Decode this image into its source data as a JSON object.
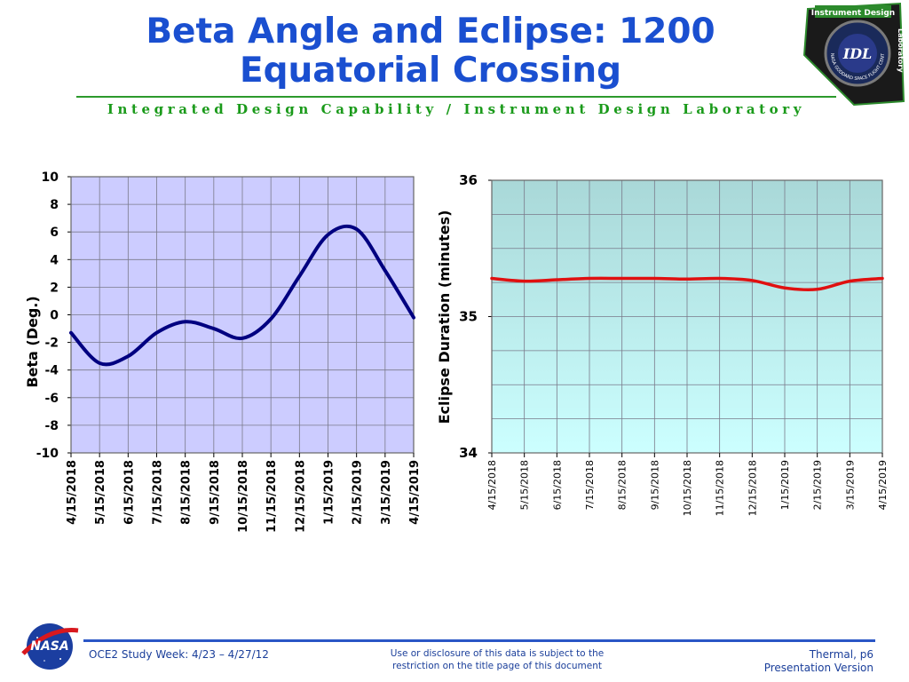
{
  "slide": {
    "title": "Beta Angle and Eclipse: 1200 Equatorial Crossing",
    "subtitle": "Integrated Design Capability / Instrument Design Laboratory"
  },
  "logo": {
    "top_text": "Instrument Design",
    "side_text": "Laboratory",
    "center_text": "IDL",
    "ring_text": "NASA GODDARD SPACE FLIGHT CENTER"
  },
  "footer": {
    "left": "OCE2 Study Week:  4/23 – 4/27/12",
    "center_line1": "Use or disclosure of this data is subject to the",
    "center_line2": "restriction on the title page of this document",
    "right_line1": "Thermal,  p6",
    "right_line2": "Presentation Version",
    "nasa_logo_text": "NASA"
  },
  "colors": {
    "title": "#1a4fd0",
    "subtitle": "#1a9a1a",
    "beta_plot_bg": "#ccccff",
    "beta_line": "#000080",
    "eclipse_plot_bg_top": "#a9d8d8",
    "eclipse_plot_bg_bottom": "#ccffff",
    "eclipse_line": "#e01010"
  },
  "chart_data": [
    {
      "type": "line",
      "categories": [
        "4/15/2018",
        "5/15/2018",
        "6/15/2018",
        "7/15/2018",
        "8/15/2018",
        "9/15/2018",
        "10/15/2018",
        "11/15/2018",
        "12/15/2018",
        "1/15/2019",
        "2/15/2019",
        "3/15/2019",
        "4/15/2019"
      ],
      "series": [
        {
          "values": [
            -1.3,
            -3.5,
            -3.0,
            -1.3,
            -0.5,
            -1.0,
            -1.7,
            -0.3,
            2.8,
            5.8,
            6.2,
            3.2,
            -0.2
          ]
        }
      ],
      "title": "",
      "xlabel": "",
      "ylabel": "Beta (Deg.)",
      "ylim": [
        -10,
        10
      ],
      "yticks": [
        "10",
        "8",
        "6",
        "4",
        "2",
        "0",
        "-2",
        "-4",
        "-6",
        "-8",
        "-10"
      ],
      "grid": true
    },
    {
      "type": "line",
      "categories": [
        "4/15/2018",
        "5/15/2018",
        "6/15/2018",
        "7/15/2018",
        "8/15/2018",
        "9/15/2018",
        "10/15/2018",
        "11/15/2018",
        "12/15/2018",
        "1/15/2019",
        "2/15/2019",
        "3/15/2019",
        "4/15/2019"
      ],
      "series": [
        {
          "values": [
            35.28,
            35.26,
            35.27,
            35.28,
            35.28,
            35.28,
            35.275,
            35.28,
            35.265,
            35.21,
            35.2,
            35.26,
            35.28
          ]
        }
      ],
      "title": "",
      "xlabel": "",
      "ylabel": "Eclipse Duration (minutes)",
      "ylim": [
        34,
        36
      ],
      "yticks": [
        "36",
        "35",
        "34"
      ],
      "grid": true
    }
  ]
}
